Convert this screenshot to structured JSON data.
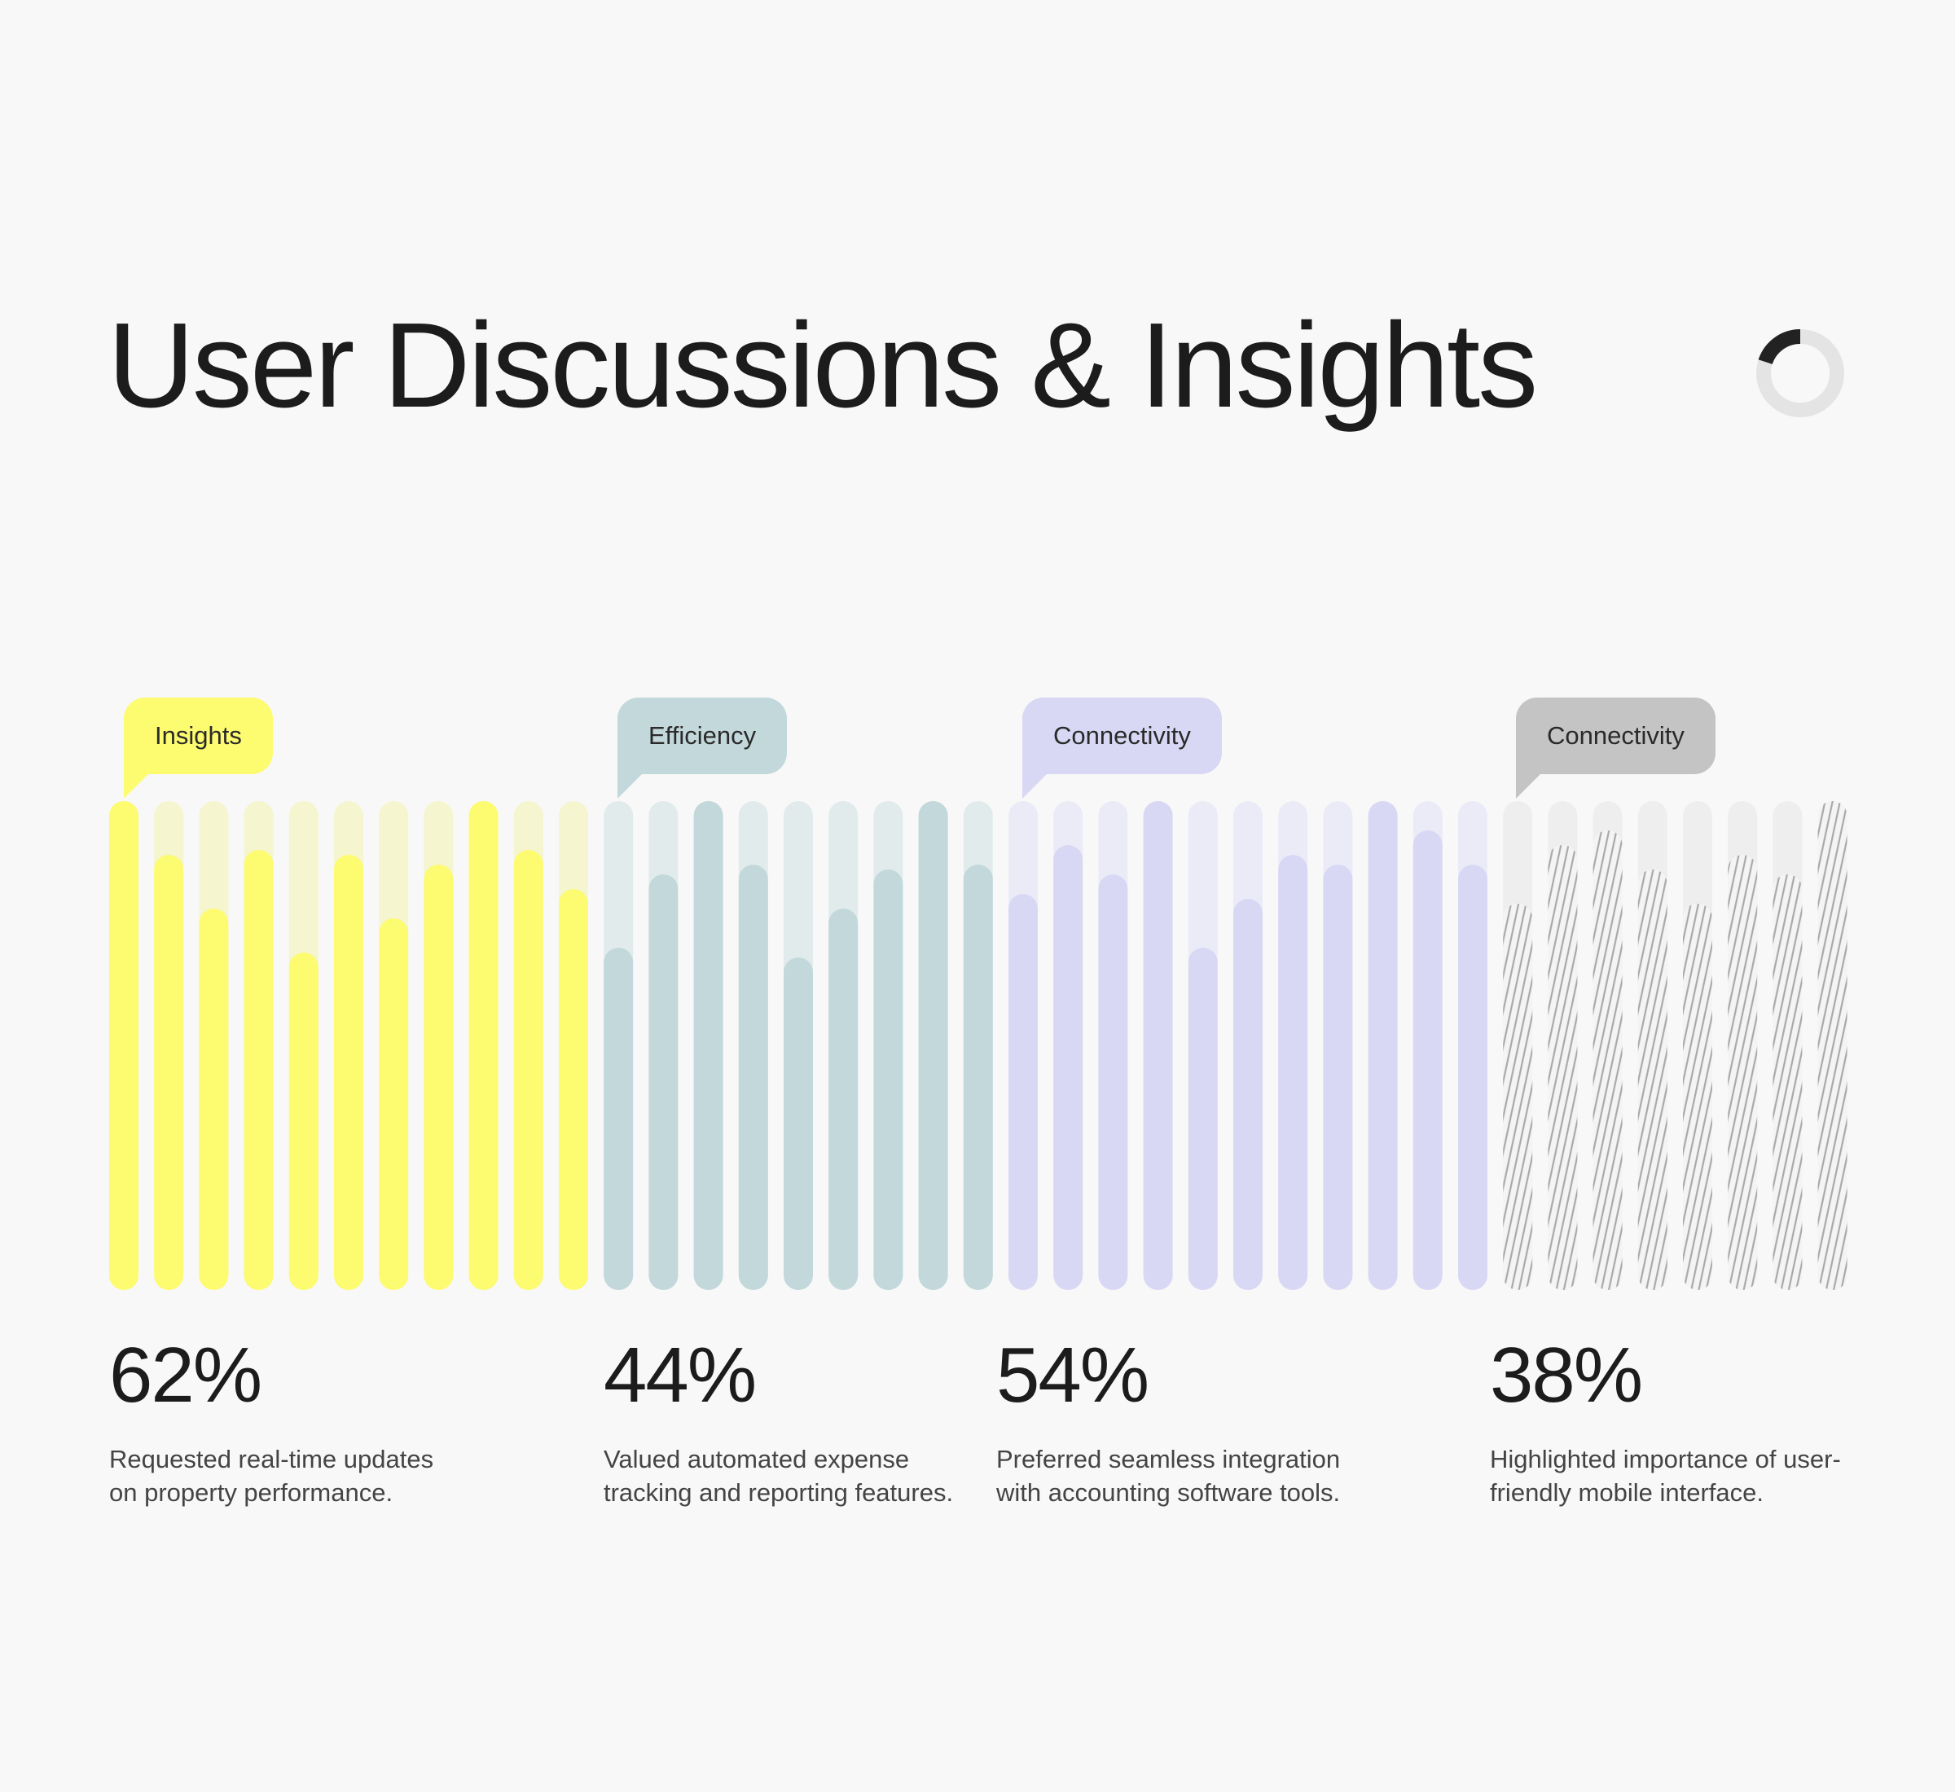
{
  "title": "User Discussions & Insights",
  "colors": {
    "background": "#f8f8f8",
    "text": "#1c1c1c",
    "spinner_track": "#e4e4e4",
    "spinner_arc": "#222222"
  },
  "spinner": {
    "icon": "loading-spinner-icon",
    "progress": 0.2
  },
  "chart_data": {
    "type": "bar",
    "value_scale": [
      0,
      1
    ],
    "groups": [
      {
        "tag": "Insights",
        "percentage": "62%",
        "description_line1": "Requested real-time updates",
        "description_line2": "on property performance.",
        "fill_color": "#fdfb6f",
        "track_color": "#f5f5cf",
        "pattern": "solid",
        "values": [
          1.0,
          0.89,
          0.78,
          0.9,
          0.69,
          0.89,
          0.76,
          0.87,
          1.0,
          0.9,
          0.82
        ]
      },
      {
        "tag": "Efficiency",
        "percentage": "44%",
        "description_line1": "Valued automated expense",
        "description_line2": "tracking and reporting features.",
        "fill_color": "#c2d8db",
        "track_color": "#e1ebec",
        "pattern": "solid",
        "values": [
          0.7,
          0.85,
          1.0,
          0.87,
          0.68,
          0.78,
          0.86,
          1.0,
          0.87
        ]
      },
      {
        "tag": "Connectivity",
        "percentage": "54%",
        "description_line1": "Preferred seamless integration",
        "description_line2": "with accounting software tools.",
        "fill_color": "#d8d8f5",
        "track_color": "#ebebf8",
        "pattern": "solid",
        "values": [
          0.81,
          0.91,
          0.85,
          1.0,
          0.7,
          0.8,
          0.89,
          0.87,
          1.0,
          0.94,
          0.87
        ]
      },
      {
        "tag": "Connectivity",
        "percentage": "38%",
        "description_line1": "Highlighted importance of user-",
        "description_line2": "friendly mobile interface.",
        "fill_color": "#bdbdbd",
        "track_color": "#eeeeee",
        "pattern": "hatched",
        "tag_color": "#c4c4c4",
        "values": [
          0.79,
          0.91,
          0.94,
          0.86,
          0.79,
          0.89,
          0.85,
          1.0
        ]
      }
    ]
  }
}
